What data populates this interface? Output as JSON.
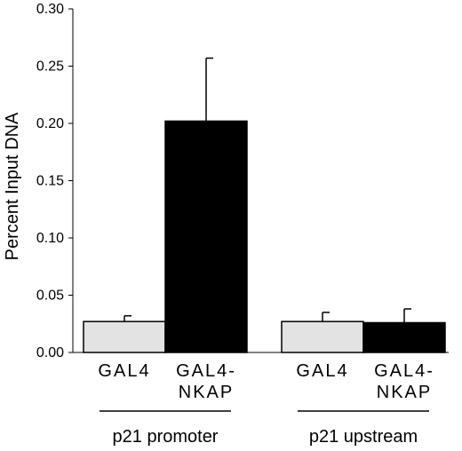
{
  "chart_data": {
    "type": "bar",
    "title": "",
    "ylabel": "Percent Input DNA",
    "xlabel": "",
    "ylim": [
      0,
      0.3
    ],
    "yticks": [
      "0.00",
      "0.05",
      "0.10",
      "0.15",
      "0.20",
      "0.25",
      "0.30"
    ],
    "grid": false,
    "legend": "none",
    "groups": [
      {
        "label": "p21 promoter",
        "bars": [
          {
            "label_lines": [
              "GAL4"
            ],
            "value": 0.027,
            "error": 0.005,
            "color": "#e3e3e3"
          },
          {
            "label_lines": [
              "GAL4-",
              "NKAP"
            ],
            "value": 0.202,
            "error": 0.055,
            "color": "#000000"
          }
        ]
      },
      {
        "label": "p21 upstream",
        "bars": [
          {
            "label_lines": [
              "GAL4"
            ],
            "value": 0.027,
            "error": 0.008,
            "color": "#e3e3e3"
          },
          {
            "label_lines": [
              "GAL4-",
              "NKAP"
            ],
            "value": 0.026,
            "error": 0.012,
            "color": "#000000"
          }
        ]
      }
    ]
  }
}
